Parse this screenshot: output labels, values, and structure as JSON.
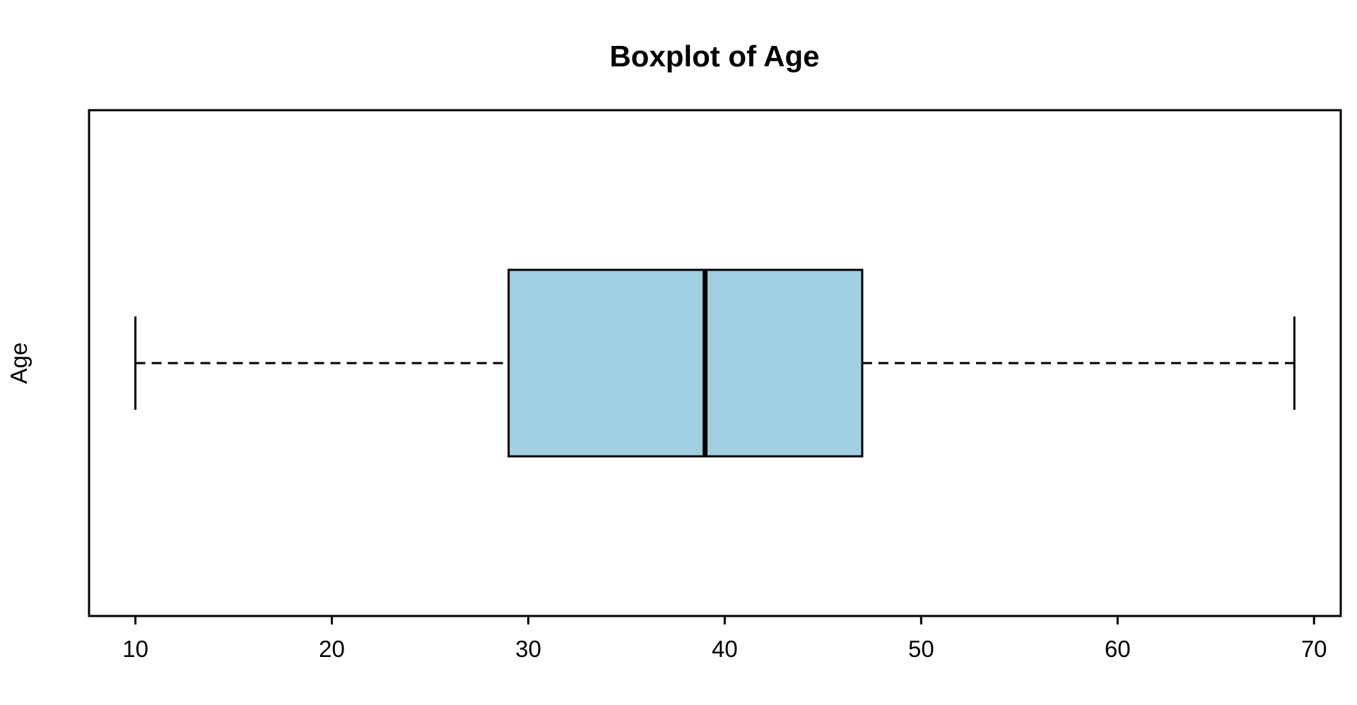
{
  "figure": {
    "title": "Boxplot of Age",
    "background_color": "#ffffff"
  },
  "chart_data": {
    "type": "boxplot",
    "orientation": "horizontal",
    "title": "Boxplot of Age",
    "xlabel": "",
    "ylabel": "Age",
    "series": [
      {
        "name": "Age",
        "min": 10,
        "q1": 29,
        "median": 39,
        "q3": 47,
        "max": 69,
        "outliers": []
      }
    ],
    "x_ticks": [
      10,
      20,
      30,
      40,
      50,
      60,
      70
    ],
    "xlim": [
      7.64,
      71.36
    ],
    "grid": false,
    "legend": false,
    "frame": true,
    "whisker_linestyle": "dashed",
    "colors": {
      "box_fill": "#A0CFE2",
      "box_border": "#000000",
      "median_line": "#000000",
      "whisker": "#000000",
      "axis": "#000000",
      "text": "#000000",
      "background": "#ffffff"
    }
  }
}
